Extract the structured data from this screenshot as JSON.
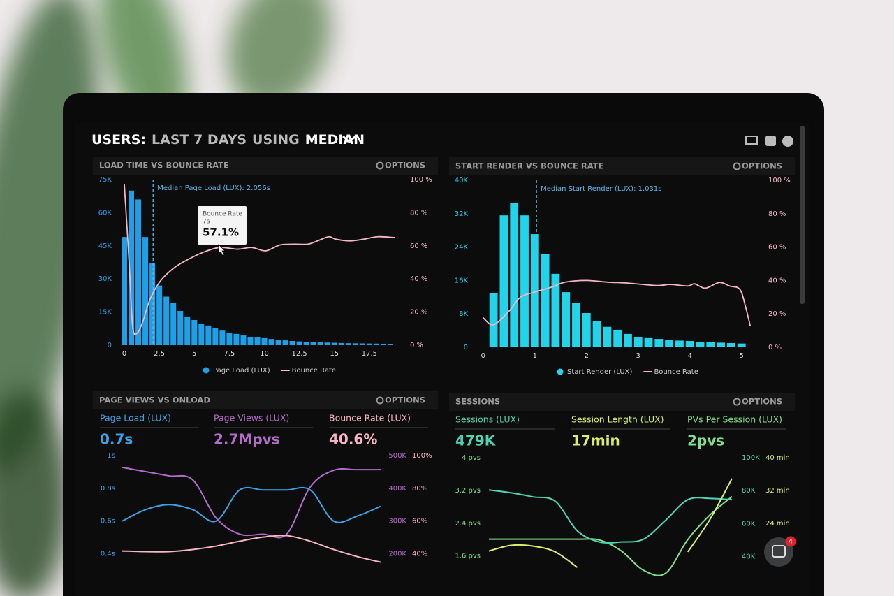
{
  "header": {
    "parts": [
      {
        "text": "USERS:",
        "color": "#ffffff"
      },
      {
        "text": "LAST 7 DAYS",
        "color": "#b9b9b9"
      },
      {
        "text": "USING",
        "color": "#b9b9b9"
      },
      {
        "text": "MEDIAN",
        "color": "#ffffff"
      }
    ]
  },
  "widgets": {
    "chat_badge": "4"
  },
  "chart_data": [
    {
      "type": "histogram",
      "title": "LOAD TIME VS BOUNCE RATE",
      "options_label": "OPTIONS",
      "bins": [
        -0.25,
        0.25,
        0.75,
        1.25,
        1.75,
        2.25,
        2.75,
        3.25,
        3.75,
        4.25,
        4.75,
        5.25,
        5.75,
        6.25,
        6.75,
        7.25,
        7.75,
        8.25,
        8.75,
        9.25,
        9.75,
        10.25,
        10.75,
        11.25,
        11.75,
        12.25,
        12.75,
        13.25,
        13.75,
        14.25,
        14.75,
        15.25,
        15.75,
        16.25,
        16.75,
        17.25,
        17.75,
        18.25,
        18.75,
        19.25
      ],
      "series": [
        {
          "name": "Page Load (LUX)",
          "color": "#1f9fe6",
          "values": [
            49000,
            70000,
            66000,
            49000,
            37000,
            27000,
            22000,
            19000,
            15500,
            13000,
            11400,
            9800,
            8900,
            7600,
            6600,
            5700,
            5100,
            4400,
            3800,
            3500,
            3200,
            2800,
            2500,
            2200,
            1900,
            1700,
            1500,
            1400,
            1300,
            1200,
            1100,
            1000,
            900,
            850,
            800,
            750,
            700,
            650,
            600
          ]
        },
        {
          "name": "Bounce Rate",
          "color": "#f5b8c6",
          "type": "line",
          "axis": "y2",
          "x": [
            0,
            0.35,
            0.6,
            0.95,
            1.35,
            1.85,
            2.6,
            3.6,
            4.6,
            5.6,
            6.8,
            8.1,
            9.1,
            10.1,
            11.1,
            12.1,
            13.1,
            13.8,
            14.6,
            15.1,
            16.1,
            17.1,
            18.1,
            19.3
          ],
          "values": [
            97,
            49,
            11,
            7.6,
            15,
            28,
            39,
            47,
            52,
            56,
            59,
            58,
            59,
            57,
            60.5,
            61,
            61,
            63,
            65.5,
            64,
            63,
            64,
            65.5,
            65
          ]
        }
      ],
      "xlim": [
        -0.3,
        19.8
      ],
      "xticks": [
        0,
        2.5,
        5,
        7.5,
        10,
        12.5,
        15,
        17.5
      ],
      "ylim": [
        0,
        75000
      ],
      "yticks": [
        0,
        {
          "value": 15000,
          "label": "15K"
        },
        {
          "value": 30000,
          "label": "30K"
        },
        {
          "value": 45000,
          "label": "45K"
        },
        {
          "value": 60000,
          "label": "60K"
        },
        {
          "value": 75000,
          "label": "75K"
        }
      ],
      "y2lim": [
        0,
        100
      ],
      "y2ticks": [
        {
          "value": 0,
          "label": "0 %"
        },
        {
          "value": 20,
          "label": "20 %"
        },
        {
          "value": 40,
          "label": "40 %"
        },
        {
          "value": 60,
          "label": "60 %"
        },
        {
          "value": 80,
          "label": "80 %"
        },
        {
          "value": 100,
          "label": "100 %"
        }
      ],
      "annotation": {
        "x": 2.056,
        "text": "Median Page Load (LUX): 2.056s"
      },
      "tooltip": {
        "title": "Bounce Rate",
        "x_label": "7s",
        "value_label": "57.1%"
      }
    },
    {
      "type": "histogram",
      "title": "START RENDER VS BOUNCE RATE",
      "options_label": "OPTIONS",
      "bins": [
        0.1,
        0.3,
        0.5,
        0.7,
        0.9,
        1.1,
        1.3,
        1.5,
        1.7,
        1.9,
        2.1,
        2.3,
        2.5,
        2.7,
        2.9,
        3.1,
        3.3,
        3.5,
        3.7,
        3.9,
        4.1,
        4.3,
        4.5,
        4.7,
        4.9,
        5.1
      ],
      "series": [
        {
          "name": "Start Render (LUX)",
          "color": "#22d4ea",
          "values": [
            12900,
            31600,
            34600,
            31600,
            27100,
            22400,
            17600,
            13200,
            10700,
            8200,
            6200,
            4900,
            4200,
            3200,
            2500,
            2200,
            2000,
            1800,
            1600,
            1500,
            1300,
            1200,
            1100,
            1000,
            900
          ]
        },
        {
          "name": "Bounce Rate",
          "color": "#f5b8c6",
          "type": "line",
          "axis": "y2",
          "x": [
            0,
            0.2,
            0.51,
            0.72,
            0.99,
            1.32,
            1.59,
            2.0,
            2.4,
            2.81,
            3.35,
            3.62,
            3.96,
            4.09,
            4.3,
            4.57,
            4.77,
            4.97,
            5.08,
            5.17
          ],
          "values": [
            17.7,
            13.5,
            22,
            30,
            33,
            36,
            39,
            40,
            39,
            38.4,
            37,
            37.6,
            36.7,
            38,
            35.4,
            38.8,
            36.7,
            34.6,
            24,
            12.7
          ]
        }
      ],
      "xlim": [
        -0.16,
        5.18
      ],
      "xticks": [
        0,
        1,
        2,
        3,
        4,
        5
      ],
      "ylim": [
        0,
        40000
      ],
      "yticks": [
        0,
        {
          "value": 8000,
          "label": "8K"
        },
        {
          "value": 16000,
          "label": "16K"
        },
        {
          "value": 24000,
          "label": "24K"
        },
        {
          "value": 32000,
          "label": "32K"
        },
        {
          "value": 40000,
          "label": "40K"
        }
      ],
      "y2lim": [
        0,
        100
      ],
      "y2ticks": [
        {
          "value": 0,
          "label": "0 %"
        },
        {
          "value": 20,
          "label": "20 %"
        },
        {
          "value": 40,
          "label": "40 %"
        },
        {
          "value": 60,
          "label": "60 %"
        },
        {
          "value": 80,
          "label": "80 %"
        },
        {
          "value": 100,
          "label": "100 %"
        }
      ],
      "annotation": {
        "x": 1.031,
        "text": "Median Start Render (LUX): 1.031s"
      }
    },
    {
      "type": "line",
      "title": "PAGE VIEWS VS ONLOAD",
      "options_label": "OPTIONS",
      "kpis": [
        {
          "label": "Page Load (LUX)",
          "value": "0.7s",
          "color": "#3aa3e8"
        },
        {
          "label": "Page Views (LUX)",
          "value": "2.7Mpvs",
          "color": "#b36bc9"
        },
        {
          "label": "Bounce Rate (LUX)",
          "value": "40.6%",
          "color": "#f7b4c4"
        }
      ],
      "categories": [
        null,
        null,
        null,
        null,
        null,
        null,
        null,
        null,
        null,
        null,
        null,
        null
      ],
      "series": [
        {
          "color": "#3aa3e8",
          "axis": "y",
          "values": [
            0.6,
            0.67,
            0.7,
            0.67,
            0.6,
            0.79,
            0.79,
            0.79,
            0.79,
            0.6,
            0.63,
            0.69
          ]
        },
        {
          "color": "#b36bc9",
          "axis": "y2",
          "values": [
            464000,
            451000,
            438000,
            426000,
            309000,
            260000,
            260000,
            260000,
            404000,
            455000,
            457000,
            457000
          ]
        },
        {
          "color": "#f7b4c4",
          "axis": "y3",
          "values": [
            41.7,
            41.3,
            41.3,
            42.6,
            44.7,
            47.7,
            50.2,
            51.1,
            47.7,
            42.6,
            38.3,
            34.9
          ]
        }
      ],
      "ylim": [
        0.3,
        1
      ],
      "yticks": [
        {
          "value": 0.4,
          "label": "0.4s"
        },
        {
          "value": 0.6,
          "label": "0.6s"
        },
        {
          "value": 0.8,
          "label": "0.8s"
        },
        {
          "value": 1,
          "label": "1s"
        }
      ],
      "y2lim": [
        150000,
        500000
      ],
      "y2ticks": [
        {
          "value": 200000,
          "label": "200K"
        },
        {
          "value": 300000,
          "label": "300K"
        },
        {
          "value": 400000,
          "label": "400K"
        },
        {
          "value": 500000,
          "label": "500K"
        }
      ],
      "y3lim": [
        30,
        100
      ],
      "y3ticks": [
        {
          "value": 40,
          "label": "40%"
        },
        {
          "value": 60,
          "label": "60%"
        },
        {
          "value": 80,
          "label": "80%"
        },
        {
          "value": 100,
          "label": "100%"
        }
      ]
    },
    {
      "type": "line",
      "title": "SESSIONS",
      "options_label": "OPTIONS",
      "kpis": [
        {
          "label": "Sessions (LUX)",
          "value": "479K",
          "color": "#4fd6b0"
        },
        {
          "label": "Session Length (LUX)",
          "value": "17min",
          "color": "#d8ef6a"
        },
        {
          "label": "PVs Per Session (LUX)",
          "value": "2pvs",
          "color": "#7ee08a"
        }
      ],
      "categories": [
        null,
        null,
        null,
        null,
        null,
        null,
        null,
        null,
        null,
        null,
        null,
        null
      ],
      "series": [
        {
          "color": "#7ee08a",
          "axis": "y",
          "values": [
            2.01,
            2.01,
            2.01,
            2.01,
            2.01,
            1.99,
            1.72,
            1.25,
            1.18,
            2.0,
            2.6,
            3.05
          ]
        },
        {
          "color": "#4fd6b0",
          "axis": "y2",
          "values": [
            80400,
            78700,
            76200,
            73600,
            55700,
            48900,
            48900,
            50600,
            62100,
            74500,
            75300,
            74500
          ]
        },
        {
          "color": "#d8ef6a",
          "axis": "y3",
          "values": [
            17.2,
            18.6,
            18.4,
            17.0,
            13.2,
            null,
            null,
            null,
            null,
            17.0,
            24.9,
            34.9
          ]
        }
      ],
      "ylim": [
        1.1,
        4
      ],
      "yticks": [
        {
          "value": 1.6,
          "label": "1.6 pvs"
        },
        {
          "value": 2.4,
          "label": "2.4 pvs"
        },
        {
          "value": 3.2,
          "label": "3.2 pvs"
        },
        {
          "value": 4,
          "label": "4 pvs"
        }
      ],
      "y2lim": [
        28000,
        100000
      ],
      "y2ticks": [
        {
          "value": 40000,
          "label": "40K"
        },
        {
          "value": 60000,
          "label": "60K"
        },
        {
          "value": 80000,
          "label": "80K"
        },
        {
          "value": 100000,
          "label": "100K"
        }
      ],
      "y3lim": [
        11,
        40
      ],
      "y3ticks": [
        {
          "value": 24,
          "label": "24 min"
        },
        {
          "value": 32,
          "label": "32 min"
        },
        {
          "value": 40,
          "label": "40 min"
        }
      ]
    }
  ]
}
